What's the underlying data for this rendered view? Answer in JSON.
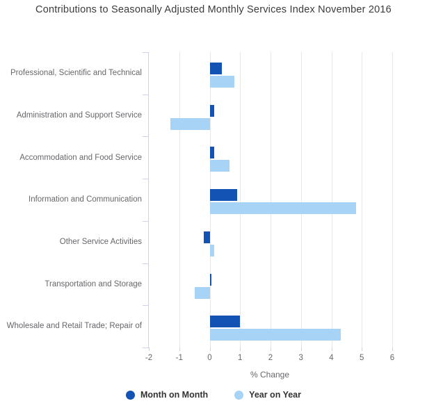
{
  "chart_data": {
    "type": "bar",
    "orientation": "horizontal",
    "title": "Contributions to Seasonally Adjusted Monthly Services Index November 2016",
    "categories": [
      "Professional, Scientific and Technical",
      "Administration and Support Service",
      "Accommodation and Food Service",
      "Information and Communication",
      "Other Service Activities",
      "Transportation and Storage",
      "Wholesale and Retail Trade; Repair of"
    ],
    "series": [
      {
        "name": "Month on Month",
        "color": "#1353b4",
        "values": [
          0.4,
          0.15,
          0.15,
          0.9,
          -0.2,
          0.05,
          1.0
        ]
      },
      {
        "name": "Year on Year",
        "color": "#a6d3f6",
        "values": [
          0.8,
          -1.3,
          0.65,
          4.8,
          0.15,
          -0.5,
          4.3
        ]
      }
    ],
    "xlabel": "% Change",
    "xlim": [
      -2,
      6
    ],
    "xticks": [
      -2,
      -1,
      0,
      1,
      2,
      3,
      4,
      5,
      6
    ],
    "grid": true,
    "legend_position": "bottom"
  },
  "colors": {
    "month_on_month": "#1353b4",
    "year_on_year": "#a6d3f6",
    "axis_line": "#c9d7e8",
    "gridline": "#e7e7e7",
    "muted_text": "#66676b",
    "title_text": "#3b3b3b",
    "legend_text": "#333333",
    "background": "#ffffff"
  }
}
